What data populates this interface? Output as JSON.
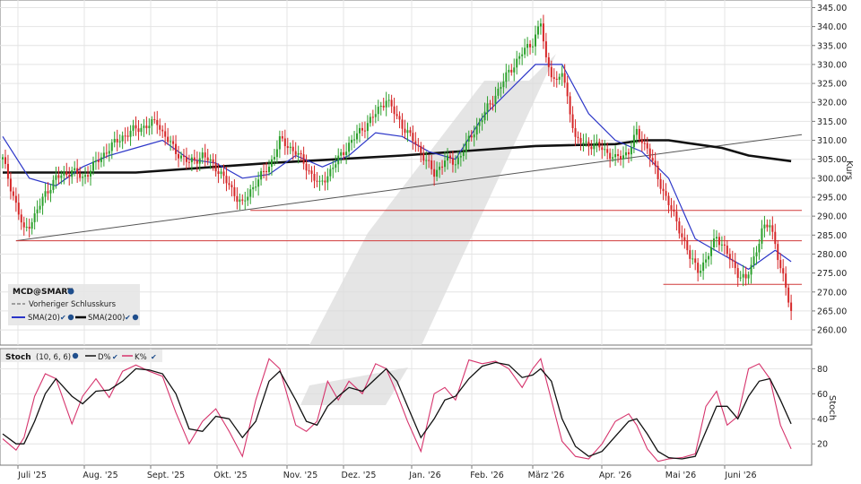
{
  "chart_data": [
    {
      "type": "candlestick",
      "symbol": "MCD@SMART",
      "legend": {
        "items": [
          {
            "label": "MCD@SMART",
            "color": "#000000"
          },
          {
            "label": "Vorheriger Schlusskurs",
            "color": "#555555"
          },
          {
            "label": "SMA(20)",
            "color": "#2b35c8"
          },
          {
            "label": "SMA(200)",
            "color": "#000000"
          }
        ],
        "placement": "bottom-left"
      },
      "ylabel": "Kurs",
      "ylim": [
        256,
        347
      ],
      "yticks": [
        345,
        340,
        335,
        330,
        325,
        320,
        315,
        310,
        305,
        300,
        295,
        290,
        285,
        280,
        275,
        270,
        265,
        260
      ],
      "grid": true,
      "x_months": [
        "Juli '25",
        "Aug. '25",
        "Sept. '25",
        "Okt. '25",
        "Nov. '25",
        "Dez. '25",
        "Jan. '26",
        "Feb. '26",
        "März '26",
        "Apr. '26",
        "Mai '26",
        "Juni '26"
      ],
      "close_path": [
        [
          0,
          305
        ],
        [
          5,
          293
        ],
        [
          8,
          286
        ],
        [
          12,
          290
        ],
        [
          16,
          296
        ],
        [
          20,
          300
        ],
        [
          26,
          302
        ],
        [
          30,
          300
        ],
        [
          35,
          304
        ],
        [
          40,
          308
        ],
        [
          45,
          311
        ],
        [
          50,
          313
        ],
        [
          55,
          314
        ],
        [
          58,
          315
        ],
        [
          60,
          312
        ],
        [
          65,
          307
        ],
        [
          70,
          304
        ],
        [
          75,
          306
        ],
        [
          80,
          303
        ],
        [
          85,
          298
        ],
        [
          90,
          293
        ],
        [
          95,
          299
        ],
        [
          100,
          303
        ],
        [
          104,
          310
        ],
        [
          110,
          307
        ],
        [
          115,
          302
        ],
        [
          119,
          298
        ],
        [
          125,
          304
        ],
        [
          130,
          309
        ],
        [
          135,
          313
        ],
        [
          140,
          317
        ],
        [
          144,
          321
        ],
        [
          148,
          316
        ],
        [
          152,
          312
        ],
        [
          157,
          307
        ],
        [
          162,
          301
        ],
        [
          166,
          305
        ],
        [
          170,
          304
        ],
        [
          175,
          310
        ],
        [
          180,
          316
        ],
        [
          185,
          322
        ],
        [
          190,
          328
        ],
        [
          195,
          333
        ],
        [
          199,
          336
        ],
        [
          202,
          341
        ],
        [
          204,
          331
        ],
        [
          208,
          325
        ],
        [
          210,
          328
        ],
        [
          213,
          318
        ],
        [
          215,
          310
        ],
        [
          220,
          309
        ],
        [
          225,
          308
        ],
        [
          230,
          305
        ],
        [
          235,
          307
        ],
        [
          238,
          312
        ],
        [
          242,
          308
        ],
        [
          246,
          300
        ],
        [
          249,
          295
        ],
        [
          252,
          290
        ],
        [
          255,
          285
        ],
        [
          258,
          279
        ],
        [
          261,
          276
        ],
        [
          264,
          278
        ],
        [
          268,
          285
        ],
        [
          272,
          280
        ],
        [
          276,
          275
        ],
        [
          279,
          273
        ],
        [
          282,
          279
        ],
        [
          285,
          286
        ],
        [
          288,
          288
        ],
        [
          290,
          283
        ],
        [
          292,
          276
        ],
        [
          294,
          271
        ],
        [
          296,
          265
        ]
      ],
      "sma20": [
        [
          0,
          311
        ],
        [
          10,
          300
        ],
        [
          20,
          298
        ],
        [
          30,
          303
        ],
        [
          40,
          306
        ],
        [
          50,
          308
        ],
        [
          60,
          310
        ],
        [
          70,
          305
        ],
        [
          80,
          304
        ],
        [
          90,
          300
        ],
        [
          100,
          301
        ],
        [
          110,
          306
        ],
        [
          120,
          303
        ],
        [
          130,
          306
        ],
        [
          140,
          312
        ],
        [
          150,
          311
        ],
        [
          160,
          307
        ],
        [
          170,
          305
        ],
        [
          180,
          316
        ],
        [
          190,
          323
        ],
        [
          200,
          330
        ],
        [
          210,
          330
        ],
        [
          220,
          317
        ],
        [
          230,
          310
        ],
        [
          240,
          307
        ],
        [
          250,
          300
        ],
        [
          260,
          284
        ],
        [
          270,
          280
        ],
        [
          280,
          276
        ],
        [
          290,
          281
        ],
        [
          296,
          278
        ]
      ],
      "sma200": [
        [
          0,
          301.5
        ],
        [
          50,
          301.5
        ],
        [
          100,
          304
        ],
        [
          150,
          306
        ],
        [
          200,
          308.5
        ],
        [
          230,
          309
        ],
        [
          240,
          310
        ],
        [
          250,
          310
        ],
        [
          260,
          309
        ],
        [
          270,
          308
        ],
        [
          280,
          306
        ],
        [
          296,
          304.5
        ]
      ],
      "trendlines": [
        {
          "from": [
            5,
            283.5
          ],
          "to": [
            300,
            311.5
          ],
          "color": "#555555"
        },
        {
          "from": [
            5,
            283.5
          ],
          "to": [
            300,
            283.5
          ],
          "color": "#d13a3a"
        },
        {
          "from": [
            93,
            291.5
          ],
          "to": [
            300,
            291.5
          ],
          "color": "#d13a3a"
        },
        {
          "from": [
            248,
            272
          ],
          "to": [
            300,
            272
          ],
          "color": "#d13a3a"
        }
      ]
    },
    {
      "type": "line",
      "title": "Stoch",
      "params": "(10, 6, 6)",
      "ylabel": "Stoch",
      "ylim": [
        3,
        96
      ],
      "yticks": [
        80,
        60,
        40,
        20
      ],
      "series": [
        {
          "name": "K%",
          "color": "#d6336c",
          "points": [
            [
              0,
              24
            ],
            [
              5,
              15
            ],
            [
              8,
              25
            ],
            [
              12,
              58
            ],
            [
              16,
              76
            ],
            [
              20,
              72
            ],
            [
              26,
              36
            ],
            [
              30,
              58
            ],
            [
              35,
              72
            ],
            [
              40,
              57
            ],
            [
              45,
              78
            ],
            [
              50,
              83
            ],
            [
              55,
              78
            ],
            [
              60,
              74
            ],
            [
              65,
              45
            ],
            [
              70,
              20
            ],
            [
              75,
              38
            ],
            [
              80,
              48
            ],
            [
              85,
              30
            ],
            [
              90,
              10
            ],
            [
              95,
              55
            ],
            [
              100,
              88
            ],
            [
              104,
              80
            ],
            [
              110,
              35
            ],
            [
              114,
              30
            ],
            [
              118,
              38
            ],
            [
              122,
              70
            ],
            [
              126,
              55
            ],
            [
              130,
              70
            ],
            [
              135,
              60
            ],
            [
              140,
              84
            ],
            [
              144,
              80
            ],
            [
              148,
              60
            ],
            [
              152,
              38
            ],
            [
              157,
              14
            ],
            [
              162,
              60
            ],
            [
              166,
              65
            ],
            [
              170,
              55
            ],
            [
              175,
              87
            ],
            [
              180,
              84
            ],
            [
              185,
              86
            ],
            [
              190,
              80
            ],
            [
              195,
              65
            ],
            [
              199,
              80
            ],
            [
              202,
              88
            ],
            [
              206,
              55
            ],
            [
              210,
              22
            ],
            [
              215,
              10
            ],
            [
              220,
              8
            ],
            [
              225,
              20
            ],
            [
              230,
              38
            ],
            [
              235,
              44
            ],
            [
              238,
              35
            ],
            [
              242,
              16
            ],
            [
              246,
              6
            ],
            [
              250,
              8
            ],
            [
              255,
              9
            ],
            [
              260,
              12
            ],
            [
              264,
              50
            ],
            [
              268,
              62
            ],
            [
              272,
              35
            ],
            [
              276,
              42
            ],
            [
              280,
              80
            ],
            [
              284,
              84
            ],
            [
              288,
              72
            ],
            [
              292,
              35
            ],
            [
              296,
              16
            ]
          ]
        },
        {
          "name": "D%",
          "color": "#111111",
          "points": [
            [
              0,
              28
            ],
            [
              5,
              20
            ],
            [
              8,
              20
            ],
            [
              12,
              38
            ],
            [
              16,
              60
            ],
            [
              20,
              72
            ],
            [
              26,
              58
            ],
            [
              30,
              52
            ],
            [
              35,
              62
            ],
            [
              40,
              63
            ],
            [
              45,
              70
            ],
            [
              50,
              80
            ],
            [
              55,
              79
            ],
            [
              60,
              76
            ],
            [
              65,
              60
            ],
            [
              70,
              32
            ],
            [
              75,
              30
            ],
            [
              80,
              42
            ],
            [
              85,
              40
            ],
            [
              90,
              25
            ],
            [
              95,
              38
            ],
            [
              100,
              70
            ],
            [
              104,
              78
            ],
            [
              110,
              55
            ],
            [
              114,
              38
            ],
            [
              118,
              35
            ],
            [
              122,
              50
            ],
            [
              126,
              58
            ],
            [
              130,
              65
            ],
            [
              135,
              62
            ],
            [
              140,
              72
            ],
            [
              144,
              80
            ],
            [
              148,
              70
            ],
            [
              152,
              50
            ],
            [
              157,
              25
            ],
            [
              162,
              40
            ],
            [
              166,
              55
            ],
            [
              170,
              58
            ],
            [
              175,
              72
            ],
            [
              180,
              82
            ],
            [
              185,
              85
            ],
            [
              190,
              83
            ],
            [
              195,
              73
            ],
            [
              199,
              75
            ],
            [
              202,
              80
            ],
            [
              206,
              70
            ],
            [
              210,
              40
            ],
            [
              215,
              18
            ],
            [
              220,
              10
            ],
            [
              225,
              14
            ],
            [
              230,
              26
            ],
            [
              235,
              38
            ],
            [
              238,
              40
            ],
            [
              242,
              28
            ],
            [
              246,
              14
            ],
            [
              250,
              9
            ],
            [
              255,
              8
            ],
            [
              260,
              10
            ],
            [
              264,
              30
            ],
            [
              268,
              50
            ],
            [
              272,
              50
            ],
            [
              276,
              40
            ],
            [
              280,
              58
            ],
            [
              284,
              70
            ],
            [
              288,
              72
            ],
            [
              292,
              55
            ],
            [
              296,
              36
            ]
          ]
        }
      ]
    }
  ]
}
